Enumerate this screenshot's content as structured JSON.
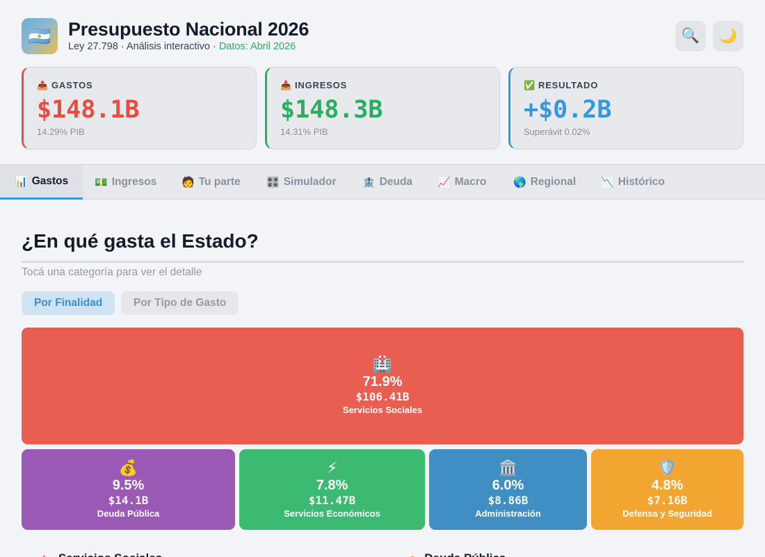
{
  "header": {
    "logo_icon": "🇦🇷",
    "title": "Presupuesto Nacional 2026",
    "subtitle_main": "Ley 27.798 · Análisis interactivo · ",
    "subtitle_date": "Datos: Abril 2026",
    "search_icon": "🔍",
    "theme_icon": "🌙"
  },
  "kpis": [
    {
      "icon": "📤",
      "label": "GASTOS",
      "value": "$148.1B",
      "sub": "14.29% PIB",
      "color": "#e74c3c"
    },
    {
      "icon": "📥",
      "label": "INGRESOS",
      "value": "$148.3B",
      "sub": "14.31% PIB",
      "color": "#27ae60"
    },
    {
      "icon": "✅",
      "label": "RESULTADO",
      "value": "+$0.2B",
      "sub": "Superávit 0.02%",
      "color": "#3498db"
    }
  ],
  "tabs": [
    {
      "icon": "📊",
      "label": "Gastos",
      "active": true
    },
    {
      "icon": "💵",
      "label": "Ingresos"
    },
    {
      "icon": "🧑",
      "label": "Tu parte"
    },
    {
      "icon": "🎛️",
      "label": "Simulador"
    },
    {
      "icon": "🏦",
      "label": "Deuda"
    },
    {
      "icon": "📈",
      "label": "Macro"
    },
    {
      "icon": "🌎",
      "label": "Regional"
    },
    {
      "icon": "📉",
      "label": "Histórico"
    }
  ],
  "section": {
    "title": "¿En qué gasta el Estado?",
    "hint": "Tocá una categoría para ver el detalle",
    "toggle_finalidad": "Por Finalidad",
    "toggle_tipo": "Por Tipo de Gasto"
  },
  "treemap": [
    {
      "icon": "🏥",
      "pct": "71.9%",
      "amount": "$106.41B",
      "name": "Servicios Sociales",
      "color": "#e85f52"
    },
    {
      "icon": "💰",
      "pct": "9.5%",
      "amount": "$14.1B",
      "name": "Deuda Pública",
      "color": "#9b59b6"
    },
    {
      "icon": "⚡",
      "pct": "7.8%",
      "amount": "$11.47B",
      "name": "Servicios Económicos",
      "color": "#3dba72"
    },
    {
      "icon": "🏛️",
      "pct": "6.0%",
      "amount": "$8.86B",
      "name": "Administración",
      "color": "#3f8fc4"
    },
    {
      "icon": "🛡️",
      "pct": "4.8%",
      "amount": "$7.16B",
      "name": "Defensa y Seguridad",
      "color": "#f2a631"
    }
  ],
  "list_peek": [
    {
      "name": "Servicios Sociales"
    },
    {
      "name": "Deuda Pública"
    }
  ]
}
